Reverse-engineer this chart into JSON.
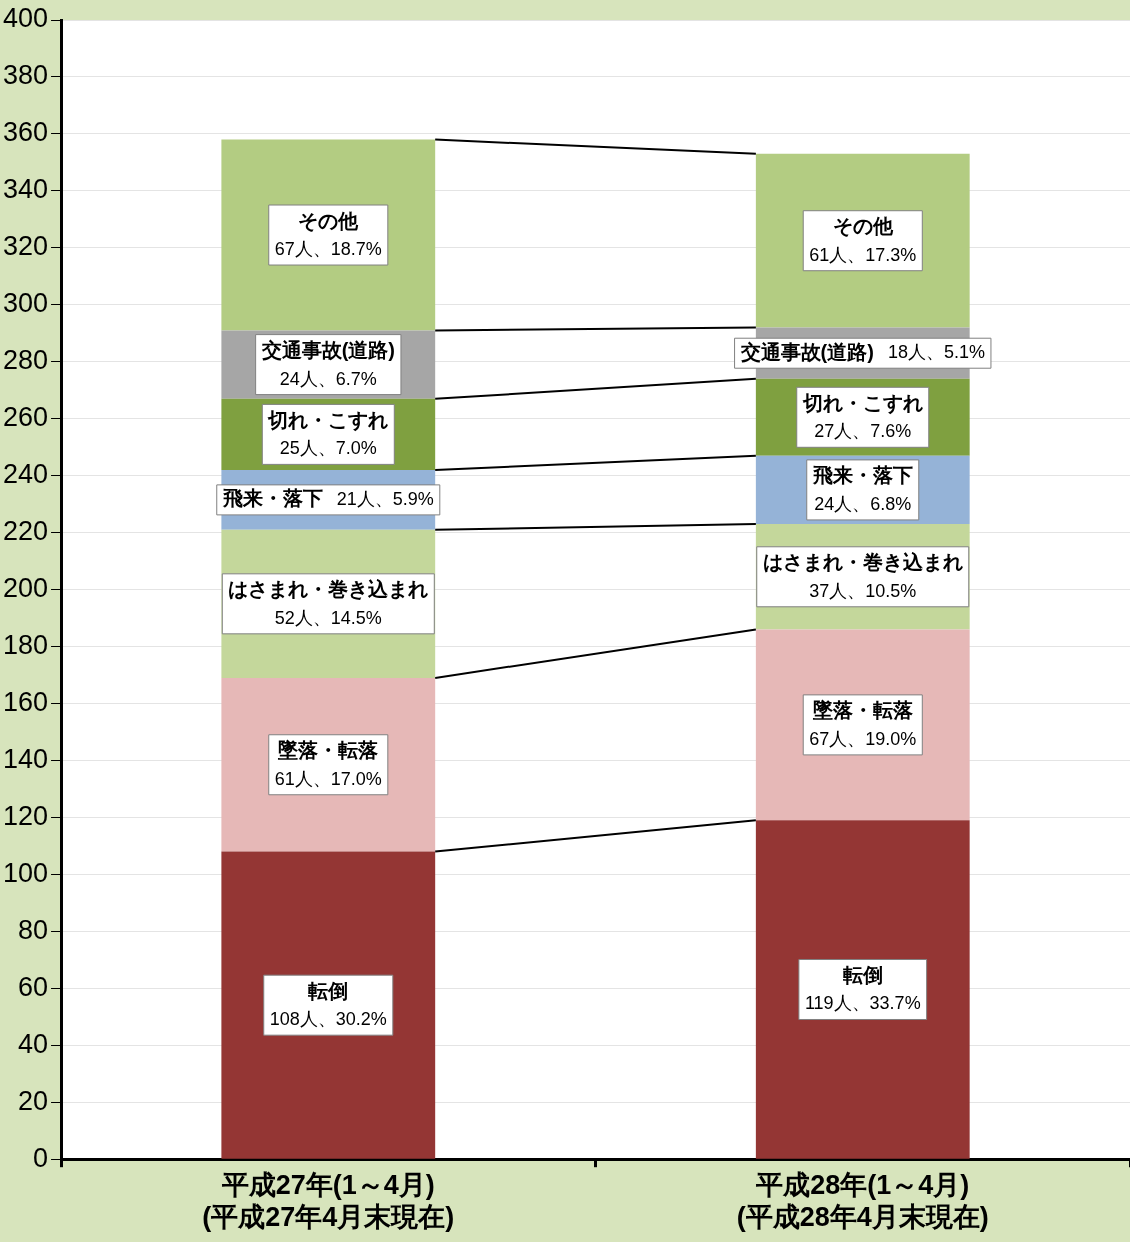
{
  "chart_data": {
    "type": "bar",
    "stacked": true,
    "categories": [
      "平成27年(1～4月)\n(平成27年4月末現在)",
      "平成28年(1～4月)\n(平成28年4月末現在)"
    ],
    "series": [
      {
        "name": "転倒",
        "color": "#943634",
        "values": [
          108,
          119
        ],
        "value_labels": [
          "108人、30.2%",
          "119人、33.7%"
        ]
      },
      {
        "name": "墜落・転落",
        "color": "#e6b8b7",
        "values": [
          61,
          67
        ],
        "value_labels": [
          "61人、17.0%",
          "67人、19.0%"
        ]
      },
      {
        "name": "はさまれ・巻き込まれ",
        "color": "#c4d79b",
        "values": [
          52,
          37
        ],
        "value_labels": [
          "52人、14.5%",
          "37人、10.5%"
        ]
      },
      {
        "name": "飛来・落下",
        "color": "#95b3d7",
        "values": [
          21,
          24
        ],
        "value_labels": [
          "21人、5.9%",
          "24人、6.8%"
        ]
      },
      {
        "name": "切れ・こすれ",
        "color": "#7fa040",
        "values": [
          25,
          27
        ],
        "value_labels": [
          "25人、7.0%",
          "27人、7.6%"
        ]
      },
      {
        "name": "交通事故(道路)",
        "color": "#a6a6a6",
        "values": [
          24,
          18
        ],
        "value_labels": [
          "24人、6.7%",
          "18人、5.1%"
        ]
      },
      {
        "name": "その他",
        "color": "#b3cc82",
        "values": [
          67,
          61
        ],
        "value_labels": [
          "67人、18.7%",
          "61人、17.3%"
        ]
      }
    ],
    "ylim": [
      0,
      400
    ],
    "yticks": [
      0,
      20,
      40,
      60,
      80,
      100,
      120,
      140,
      160,
      180,
      200,
      220,
      240,
      260,
      280,
      300,
      320,
      340,
      360,
      380,
      400
    ],
    "grid": "y",
    "legend": false
  }
}
